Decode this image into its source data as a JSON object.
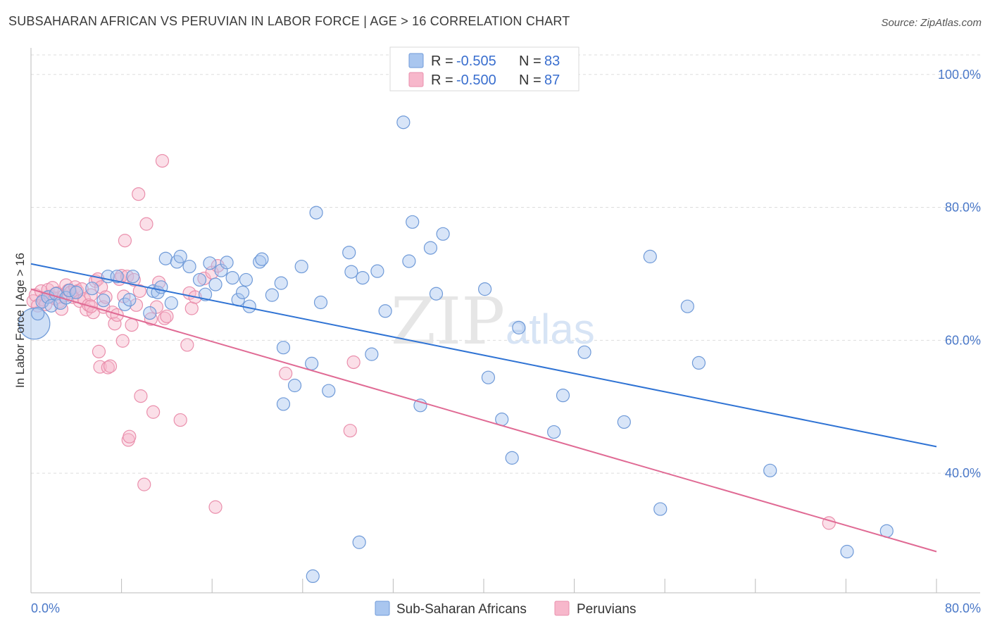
{
  "title": "SUBSAHARAN AFRICAN VS PERUVIAN IN LABOR FORCE | AGE > 16 CORRELATION CHART",
  "source": "Source: ZipAtlas.com",
  "watermark": {
    "zip": "ZIP",
    "atlas": "atlas"
  },
  "legend_top": {
    "rows": [
      {
        "r_label": "R =",
        "r_value": "-0.505",
        "n_label": "N =",
        "n_value": "83"
      },
      {
        "r_label": "R =",
        "r_value": "-0.500",
        "n_label": "N =",
        "n_value": "87"
      }
    ]
  },
  "legend_bottom": {
    "items": [
      {
        "label": "Sub-Saharan Africans"
      },
      {
        "label": "Peruvians"
      }
    ]
  },
  "colors": {
    "blue_fill": "#a9c6ef",
    "blue_stroke": "#6f9ad8",
    "blue_line": "#2f73d4",
    "pink_fill": "#f7b7cb",
    "pink_stroke": "#ea8fac",
    "pink_line": "#e06a94",
    "grid": "#dddddd",
    "tick_label": "#4a78c8"
  },
  "chart_data": {
    "type": "scatter",
    "title": "SUBSAHARAN AFRICAN VS PERUVIAN IN LABOR FORCE | AGE > 16 CORRELATION CHART",
    "xlabel": "",
    "ylabel": "In Labor Force | Age > 16",
    "xlim": [
      0,
      80
    ],
    "ylim": [
      22,
      104
    ],
    "x_tick_labels": [
      "0.0%",
      "80.0%"
    ],
    "y_ticks": [
      40,
      60,
      80,
      100
    ],
    "y_tick_labels": [
      "40.0%",
      "60.0%",
      "80.0%",
      "100.0%"
    ],
    "grid": true,
    "legend_position": "top-center",
    "series": [
      {
        "name": "Sub-Saharan Africans",
        "color": "#a9c6ef",
        "r": -0.505,
        "n": 83,
        "trend": {
          "x": [
            0,
            80
          ],
          "y": [
            71.5,
            44.0
          ]
        },
        "points": [
          [
            0.3,
            62.5
          ],
          [
            0.6,
            64
          ],
          [
            1.0,
            65.8
          ],
          [
            1.5,
            66.5
          ],
          [
            1.8,
            65.2
          ],
          [
            2.2,
            67.0
          ],
          [
            2.6,
            65.6
          ],
          [
            3.1,
            66.4
          ],
          [
            3.4,
            67.5
          ],
          [
            4.0,
            67.2
          ],
          [
            5.4,
            67.8
          ],
          [
            6.4,
            66.0
          ],
          [
            6.8,
            69.6
          ],
          [
            7.6,
            69.6
          ],
          [
            8.3,
            65.4
          ],
          [
            8.7,
            66.1
          ],
          [
            9.0,
            69.6
          ],
          [
            10.8,
            67.4
          ],
          [
            11.2,
            67.2
          ],
          [
            10.5,
            64.1
          ],
          [
            11.5,
            68.0
          ],
          [
            11.9,
            72.3
          ],
          [
            12.4,
            65.6
          ],
          [
            12.9,
            71.8
          ],
          [
            13.2,
            72.6
          ],
          [
            14.0,
            71.1
          ],
          [
            14.9,
            69.1
          ],
          [
            15.4,
            66.9
          ],
          [
            15.8,
            71.6
          ],
          [
            16.3,
            68.4
          ],
          [
            16.8,
            70.5
          ],
          [
            17.3,
            71.7
          ],
          [
            17.8,
            69.4
          ],
          [
            18.3,
            66.1
          ],
          [
            18.7,
            67.2
          ],
          [
            19.3,
            65.1
          ],
          [
            19.0,
            69.1
          ],
          [
            20.2,
            71.8
          ],
          [
            20.4,
            72.2
          ],
          [
            21.3,
            66.8
          ],
          [
            22.1,
            68.6
          ],
          [
            22.3,
            58.9
          ],
          [
            22.3,
            50.4
          ],
          [
            23.3,
            53.2
          ],
          [
            23.9,
            71.1
          ],
          [
            24.8,
            56.5
          ],
          [
            24.9,
            24.5
          ],
          [
            25.2,
            79.2
          ],
          [
            25.6,
            65.7
          ],
          [
            26.3,
            52.4
          ],
          [
            28.1,
            73.2
          ],
          [
            28.3,
            70.3
          ],
          [
            29.0,
            29.6
          ],
          [
            29.3,
            69.4
          ],
          [
            30.1,
            57.9
          ],
          [
            30.6,
            70.4
          ],
          [
            31.3,
            64.4
          ],
          [
            32.9,
            92.8
          ],
          [
            33.4,
            71.9
          ],
          [
            33.7,
            77.8
          ],
          [
            34.4,
            50.2
          ],
          [
            35.3,
            73.9
          ],
          [
            35.8,
            67.0
          ],
          [
            36.4,
            76.0
          ],
          [
            40.1,
            67.7
          ],
          [
            40.4,
            54.4
          ],
          [
            41.6,
            48.1
          ],
          [
            42.5,
            42.3
          ],
          [
            43.1,
            61.9
          ],
          [
            46.2,
            46.2
          ],
          [
            47.0,
            51.7
          ],
          [
            48.9,
            58.2
          ],
          [
            52.4,
            47.7
          ],
          [
            54.7,
            72.6
          ],
          [
            55.6,
            34.6
          ],
          [
            58.0,
            65.1
          ],
          [
            59.0,
            56.6
          ],
          [
            65.3,
            40.4
          ],
          [
            72.1,
            28.2
          ],
          [
            75.6,
            31.3
          ]
        ]
      },
      {
        "name": "Peruvians",
        "color": "#f7b7cb",
        "r": -0.5,
        "n": 87,
        "trend": {
          "x": [
            0,
            80
          ],
          "y": [
            67.7,
            28.2
          ]
        },
        "points": [
          [
            0.2,
            65.9
          ],
          [
            0.4,
            66.8
          ],
          [
            0.6,
            65.2
          ],
          [
            0.9,
            67.4
          ],
          [
            1.1,
            66.1
          ],
          [
            1.3,
            65.4
          ],
          [
            1.5,
            67.6
          ],
          [
            1.7,
            66.6
          ],
          [
            1.9,
            67.9
          ],
          [
            2.1,
            66.3
          ],
          [
            2.3,
            67.1
          ],
          [
            2.5,
            65.8
          ],
          [
            2.7,
            64.7
          ],
          [
            2.9,
            66.7
          ],
          [
            3.1,
            68.3
          ],
          [
            3.3,
            67.5
          ],
          [
            3.5,
            67.2
          ],
          [
            3.7,
            66.5
          ],
          [
            3.9,
            68.0
          ],
          [
            4.1,
            67.4
          ],
          [
            4.3,
            65.9
          ],
          [
            4.5,
            67.7
          ],
          [
            4.7,
            66.2
          ],
          [
            4.9,
            64.6
          ],
          [
            5.1,
            65.3
          ],
          [
            5.3,
            66.8
          ],
          [
            5.5,
            64.2
          ],
          [
            5.7,
            68.9
          ],
          [
            5.9,
            69.2
          ],
          [
            5.3,
            65.1
          ],
          [
            6.0,
            58.3
          ],
          [
            6.2,
            68.0
          ],
          [
            6.4,
            65.0
          ],
          [
            6.6,
            66.5
          ],
          [
            6.1,
            56.0
          ],
          [
            6.8,
            55.9
          ],
          [
            7.0,
            56.1
          ],
          [
            7.2,
            64.2
          ],
          [
            7.4,
            62.5
          ],
          [
            7.6,
            63.8
          ],
          [
            7.8,
            69.2
          ],
          [
            8.0,
            69.7
          ],
          [
            8.2,
            66.6
          ],
          [
            8.3,
            75.0
          ],
          [
            8.5,
            69.6
          ],
          [
            8.1,
            59.9
          ],
          [
            8.6,
            45.0
          ],
          [
            8.7,
            45.5
          ],
          [
            8.9,
            62.3
          ],
          [
            9.1,
            69.1
          ],
          [
            9.3,
            65.3
          ],
          [
            9.5,
            82.0
          ],
          [
            9.6,
            67.4
          ],
          [
            9.7,
            51.6
          ],
          [
            10.0,
            38.3
          ],
          [
            10.2,
            77.5
          ],
          [
            10.6,
            63.2
          ],
          [
            10.8,
            49.2
          ],
          [
            11.1,
            65.0
          ],
          [
            11.3,
            68.7
          ],
          [
            11.6,
            87.0
          ],
          [
            11.8,
            63.3
          ],
          [
            12.0,
            63.6
          ],
          [
            13.2,
            48.0
          ],
          [
            13.8,
            59.3
          ],
          [
            14.0,
            67.1
          ],
          [
            14.2,
            64.8
          ],
          [
            14.5,
            66.5
          ],
          [
            15.3,
            69.3
          ],
          [
            16.0,
            70.2
          ],
          [
            16.5,
            71.2
          ],
          [
            16.3,
            34.9
          ],
          [
            22.5,
            55.0
          ],
          [
            28.2,
            46.4
          ],
          [
            28.5,
            56.7
          ],
          [
            70.5,
            32.5
          ]
        ]
      }
    ]
  }
}
